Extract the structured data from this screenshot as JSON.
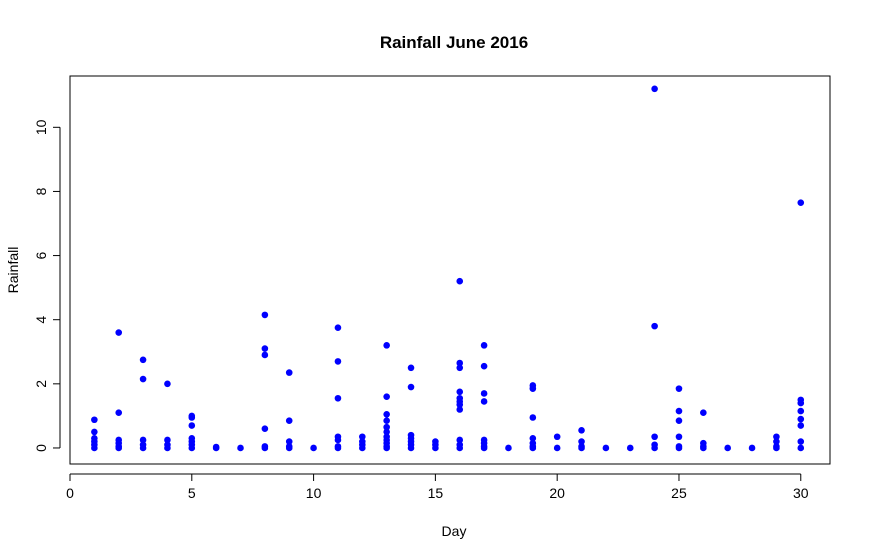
{
  "chart_data": {
    "type": "scatter",
    "title": "Rainfall June 2016",
    "xlabel": "Day",
    "ylabel": "Rainfall",
    "xlim": [
      0,
      31.2
    ],
    "ylim": [
      -0.5,
      11.6
    ],
    "xticks": [
      0,
      5,
      10,
      15,
      20,
      25,
      30
    ],
    "yticks": [
      0,
      2,
      4,
      6,
      8,
      10
    ],
    "grid": false,
    "legend": "none",
    "point_color": "#0000ff",
    "points": [
      {
        "x": 1,
        "y": 0.88
      },
      {
        "x": 1,
        "y": 0.5
      },
      {
        "x": 1,
        "y": 0.3
      },
      {
        "x": 1,
        "y": 0.2
      },
      {
        "x": 1,
        "y": 0.1
      },
      {
        "x": 1,
        "y": 0.0
      },
      {
        "x": 2,
        "y": 3.6
      },
      {
        "x": 2,
        "y": 1.1
      },
      {
        "x": 2,
        "y": 0.25
      },
      {
        "x": 2,
        "y": 0.15
      },
      {
        "x": 2,
        "y": 0.05
      },
      {
        "x": 2,
        "y": 0.0
      },
      {
        "x": 3,
        "y": 2.75
      },
      {
        "x": 3,
        "y": 2.15
      },
      {
        "x": 3,
        "y": 0.25
      },
      {
        "x": 3,
        "y": 0.1
      },
      {
        "x": 3,
        "y": 0.0
      },
      {
        "x": 4,
        "y": 2.0
      },
      {
        "x": 4,
        "y": 0.25
      },
      {
        "x": 4,
        "y": 0.1
      },
      {
        "x": 4,
        "y": 0.0
      },
      {
        "x": 5,
        "y": 1.0
      },
      {
        "x": 5,
        "y": 0.95
      },
      {
        "x": 5,
        "y": 0.7
      },
      {
        "x": 5,
        "y": 0.3
      },
      {
        "x": 5,
        "y": 0.2
      },
      {
        "x": 5,
        "y": 0.1
      },
      {
        "x": 5,
        "y": 0.0
      },
      {
        "x": 6,
        "y": 0.03
      },
      {
        "x": 6,
        "y": 0.0
      },
      {
        "x": 7,
        "y": 0.0
      },
      {
        "x": 8,
        "y": 4.15
      },
      {
        "x": 8,
        "y": 3.1
      },
      {
        "x": 8,
        "y": 2.9
      },
      {
        "x": 8,
        "y": 0.6
      },
      {
        "x": 8,
        "y": 0.05
      },
      {
        "x": 8,
        "y": 0.0
      },
      {
        "x": 9,
        "y": 2.35
      },
      {
        "x": 9,
        "y": 0.85
      },
      {
        "x": 9,
        "y": 0.2
      },
      {
        "x": 9,
        "y": 0.05
      },
      {
        "x": 9,
        "y": 0.0
      },
      {
        "x": 10,
        "y": 0.0
      },
      {
        "x": 11,
        "y": 3.75
      },
      {
        "x": 11,
        "y": 2.7
      },
      {
        "x": 11,
        "y": 1.55
      },
      {
        "x": 11,
        "y": 0.35
      },
      {
        "x": 11,
        "y": 0.25
      },
      {
        "x": 11,
        "y": 0.05
      },
      {
        "x": 11,
        "y": 0.0
      },
      {
        "x": 12,
        "y": 0.35
      },
      {
        "x": 12,
        "y": 0.2
      },
      {
        "x": 12,
        "y": 0.1
      },
      {
        "x": 12,
        "y": 0.0
      },
      {
        "x": 13,
        "y": 3.2
      },
      {
        "x": 13,
        "y": 1.6
      },
      {
        "x": 13,
        "y": 1.05
      },
      {
        "x": 13,
        "y": 0.85
      },
      {
        "x": 13,
        "y": 0.65
      },
      {
        "x": 13,
        "y": 0.5
      },
      {
        "x": 13,
        "y": 0.35
      },
      {
        "x": 13,
        "y": 0.25
      },
      {
        "x": 13,
        "y": 0.15
      },
      {
        "x": 13,
        "y": 0.05
      },
      {
        "x": 13,
        "y": 0.0
      },
      {
        "x": 14,
        "y": 2.5
      },
      {
        "x": 14,
        "y": 1.9
      },
      {
        "x": 14,
        "y": 0.4
      },
      {
        "x": 14,
        "y": 0.3
      },
      {
        "x": 14,
        "y": 0.2
      },
      {
        "x": 14,
        "y": 0.1
      },
      {
        "x": 14,
        "y": 0.0
      },
      {
        "x": 15,
        "y": 0.2
      },
      {
        "x": 15,
        "y": 0.1
      },
      {
        "x": 15,
        "y": 0.0
      },
      {
        "x": 16,
        "y": 5.2
      },
      {
        "x": 16,
        "y": 2.65
      },
      {
        "x": 16,
        "y": 2.5
      },
      {
        "x": 16,
        "y": 1.75
      },
      {
        "x": 16,
        "y": 1.55
      },
      {
        "x": 16,
        "y": 1.45
      },
      {
        "x": 16,
        "y": 1.35
      },
      {
        "x": 16,
        "y": 1.2
      },
      {
        "x": 16,
        "y": 0.25
      },
      {
        "x": 16,
        "y": 0.1
      },
      {
        "x": 16,
        "y": 0.0
      },
      {
        "x": 17,
        "y": 3.2
      },
      {
        "x": 17,
        "y": 2.55
      },
      {
        "x": 17,
        "y": 1.7
      },
      {
        "x": 17,
        "y": 1.45
      },
      {
        "x": 17,
        "y": 0.25
      },
      {
        "x": 17,
        "y": 0.15
      },
      {
        "x": 17,
        "y": 0.05
      },
      {
        "x": 17,
        "y": 0.0
      },
      {
        "x": 18,
        "y": 0.0
      },
      {
        "x": 19,
        "y": 1.95
      },
      {
        "x": 19,
        "y": 1.85
      },
      {
        "x": 19,
        "y": 0.95
      },
      {
        "x": 19,
        "y": 0.3
      },
      {
        "x": 19,
        "y": 0.15
      },
      {
        "x": 19,
        "y": 0.05
      },
      {
        "x": 19,
        "y": 0.0
      },
      {
        "x": 20,
        "y": 0.35
      },
      {
        "x": 20,
        "y": 0.0
      },
      {
        "x": 21,
        "y": 0.55
      },
      {
        "x": 21,
        "y": 0.2
      },
      {
        "x": 21,
        "y": 0.05
      },
      {
        "x": 21,
        "y": 0.0
      },
      {
        "x": 22,
        "y": 0.0
      },
      {
        "x": 23,
        "y": 0.0
      },
      {
        "x": 24,
        "y": 11.2
      },
      {
        "x": 24,
        "y": 3.8
      },
      {
        "x": 24,
        "y": 0.35
      },
      {
        "x": 24,
        "y": 0.1
      },
      {
        "x": 24,
        "y": 0.0
      },
      {
        "x": 25,
        "y": 1.85
      },
      {
        "x": 25,
        "y": 1.15
      },
      {
        "x": 25,
        "y": 0.85
      },
      {
        "x": 25,
        "y": 0.35
      },
      {
        "x": 25,
        "y": 0.05
      },
      {
        "x": 25,
        "y": 0.0
      },
      {
        "x": 26,
        "y": 1.1
      },
      {
        "x": 26,
        "y": 0.15
      },
      {
        "x": 26,
        "y": 0.05
      },
      {
        "x": 26,
        "y": 0.0
      },
      {
        "x": 27,
        "y": 0.0
      },
      {
        "x": 28,
        "y": 0.0
      },
      {
        "x": 29,
        "y": 0.35
      },
      {
        "x": 29,
        "y": 0.2
      },
      {
        "x": 29,
        "y": 0.05
      },
      {
        "x": 29,
        "y": 0.0
      },
      {
        "x": 30,
        "y": 7.65
      },
      {
        "x": 30,
        "y": 1.5
      },
      {
        "x": 30,
        "y": 1.4
      },
      {
        "x": 30,
        "y": 1.15
      },
      {
        "x": 30,
        "y": 0.9
      },
      {
        "x": 30,
        "y": 0.7
      },
      {
        "x": 30,
        "y": 0.2
      },
      {
        "x": 30,
        "y": 0.0
      }
    ]
  }
}
